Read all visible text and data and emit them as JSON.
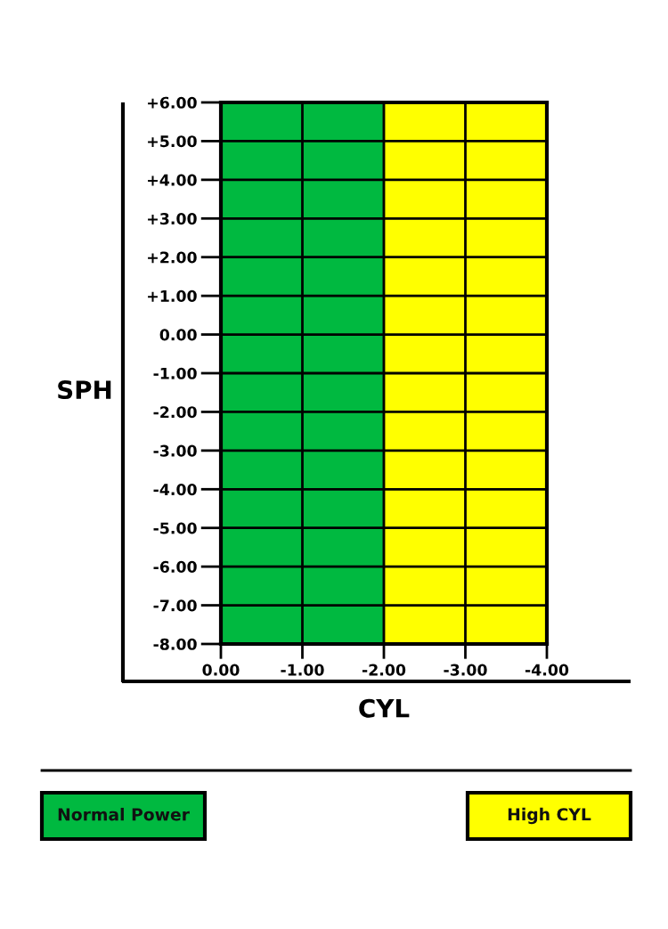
{
  "chart_data": {
    "type": "bar",
    "xlabel": "CYL",
    "ylabel": "SPH",
    "x": [
      -1,
      -3
    ],
    "values": [
      14,
      14
    ],
    "base": [
      -8,
      -8
    ],
    "colors": [
      "#00b940",
      "#ffff00"
    ],
    "xlim": [
      0,
      -4
    ],
    "ylim": [
      -8,
      6
    ],
    "xticks": [
      {
        "value": 0,
        "label": "0.00"
      },
      {
        "value": -1,
        "label": "-1.00"
      },
      {
        "value": -2,
        "label": "-2.00"
      },
      {
        "value": -3,
        "label": "-3.00"
      },
      {
        "value": -4,
        "label": "-4.00"
      }
    ],
    "yticks": [
      {
        "value": 6,
        "label": "+6.00"
      },
      {
        "value": 5,
        "label": "+5.00"
      },
      {
        "value": 4,
        "label": "+4.00"
      },
      {
        "value": 3,
        "label": "+3.00"
      },
      {
        "value": 2,
        "label": "+2.00"
      },
      {
        "value": 1,
        "label": "+1.00"
      },
      {
        "value": 0,
        "label": "0.00"
      },
      {
        "value": -1,
        "label": "-1.00"
      },
      {
        "value": -2,
        "label": "-2.00"
      },
      {
        "value": -3,
        "label": "-3.00"
      },
      {
        "value": -4,
        "label": "-4.00"
      },
      {
        "value": -5,
        "label": "-5.00"
      },
      {
        "value": -6,
        "label": "-6.00"
      },
      {
        "value": -7,
        "label": "-7.00"
      },
      {
        "value": -8,
        "label": "-8.00"
      }
    ],
    "grid": true,
    "annotations": [
      "Normal Power",
      "High CYL"
    ]
  }
}
